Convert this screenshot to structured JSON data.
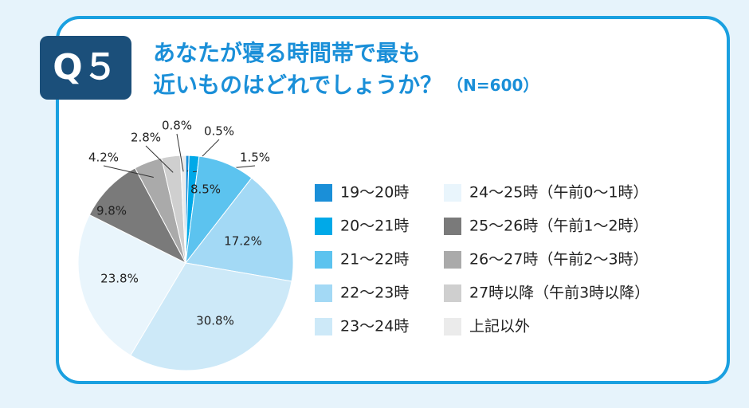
{
  "chart_data": {
    "type": "pie",
    "badge": "Q５",
    "title_lines": [
      "あなたが寝る時間帯で最も",
      "近いものはどれでしょうか？"
    ],
    "note": "（N=600）",
    "categories": [
      "19～20時",
      "20～21時",
      "21～22時",
      "22～23時",
      "23～24時",
      "24～25時（午前0～1時）",
      "25～26時（午前1～2時）",
      "26～27時（午前2～3時）",
      "27時以降（午前3時以降）",
      "上記以外"
    ],
    "values": [
      0.5,
      1.5,
      8.5,
      17.2,
      30.8,
      23.8,
      9.8,
      4.2,
      2.8,
      0.8
    ],
    "value_labels": [
      "0.5%",
      "1.5%",
      "8.5%",
      "17.2%",
      "30.8%",
      "23.8%",
      "9.8%",
      "4.2%",
      "2.8%",
      "0.8%"
    ],
    "colors": [
      "#1a8fd8",
      "#00a9e8",
      "#5cc3ef",
      "#a3d9f5",
      "#cde9f8",
      "#e9f5fc",
      "#7a7a7a",
      "#aaaaaa",
      "#cfcfcf",
      "#ebebeb"
    ]
  }
}
